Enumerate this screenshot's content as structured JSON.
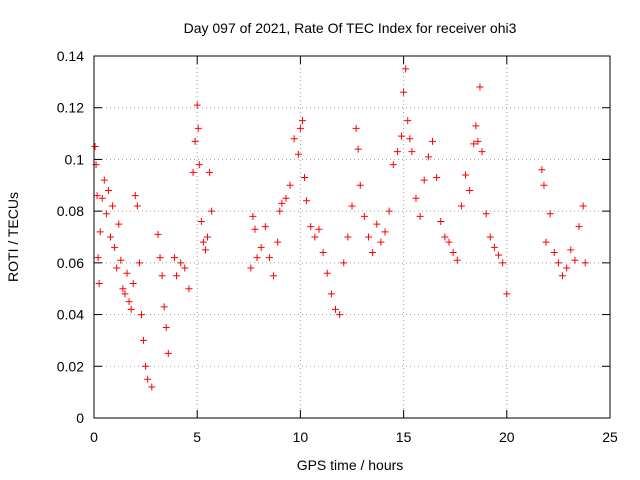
{
  "chart_data": {
    "type": "scatter",
    "title": "Day 097 of 2021, Rate Of TEC Index for receiver ohi3",
    "xlabel": "GPS time / hours",
    "ylabel": "ROTI / TECUs",
    "xlim": [
      0,
      25
    ],
    "ylim": [
      0,
      0.14
    ],
    "xticks": [
      0,
      5,
      10,
      15,
      20,
      25
    ],
    "yticks": [
      0,
      0.02,
      0.04,
      0.06,
      0.08,
      0.1,
      0.12,
      0.14
    ],
    "xtick_labels": [
      "0",
      "5",
      "10",
      "15",
      "20",
      "25"
    ],
    "ytick_labels": [
      "0",
      "0.02",
      "0.04",
      "0.06",
      "0.08",
      "0.1",
      "0.12",
      "0.14"
    ],
    "grid": true,
    "marker": "+",
    "series": [
      {
        "color": "#ff0000",
        "points": [
          [
            0.05,
            0.105
          ],
          [
            0.1,
            0.098
          ],
          [
            0.15,
            0.086
          ],
          [
            0.2,
            0.062
          ],
          [
            0.25,
            0.052
          ],
          [
            0.3,
            0.072
          ],
          [
            0.4,
            0.085
          ],
          [
            0.5,
            0.092
          ],
          [
            0.6,
            0.079
          ],
          [
            0.7,
            0.088
          ],
          [
            0.8,
            0.07
          ],
          [
            0.9,
            0.082
          ],
          [
            1.0,
            0.066
          ],
          [
            1.1,
            0.058
          ],
          [
            1.2,
            0.075
          ],
          [
            1.3,
            0.061
          ],
          [
            1.4,
            0.05
          ],
          [
            1.5,
            0.048
          ],
          [
            1.6,
            0.056
          ],
          [
            1.7,
            0.045
          ],
          [
            1.8,
            0.042
          ],
          [
            1.9,
            0.052
          ],
          [
            2.0,
            0.086
          ],
          [
            2.1,
            0.082
          ],
          [
            2.2,
            0.06
          ],
          [
            2.3,
            0.04
          ],
          [
            2.4,
            0.03
          ],
          [
            2.5,
            0.02
          ],
          [
            2.6,
            0.015
          ],
          [
            2.8,
            0.012
          ],
          [
            3.1,
            0.071
          ],
          [
            3.2,
            0.062
          ],
          [
            3.3,
            0.055
          ],
          [
            3.4,
            0.043
          ],
          [
            3.5,
            0.035
          ],
          [
            3.6,
            0.025
          ],
          [
            3.9,
            0.062
          ],
          [
            4.0,
            0.055
          ],
          [
            4.2,
            0.06
          ],
          [
            4.4,
            0.058
          ],
          [
            4.6,
            0.05
          ],
          [
            4.8,
            0.095
          ],
          [
            4.9,
            0.107
          ],
          [
            5.0,
            0.121
          ],
          [
            5.05,
            0.112
          ],
          [
            5.1,
            0.098
          ],
          [
            5.2,
            0.076
          ],
          [
            5.3,
            0.068
          ],
          [
            5.4,
            0.065
          ],
          [
            5.5,
            0.07
          ],
          [
            5.6,
            0.095
          ],
          [
            5.7,
            0.08
          ],
          [
            7.6,
            0.058
          ],
          [
            7.7,
            0.078
          ],
          [
            7.8,
            0.073
          ],
          [
            7.9,
            0.062
          ],
          [
            8.1,
            0.066
          ],
          [
            8.3,
            0.074
          ],
          [
            8.5,
            0.062
          ],
          [
            8.7,
            0.055
          ],
          [
            8.9,
            0.068
          ],
          [
            9.0,
            0.08
          ],
          [
            9.1,
            0.083
          ],
          [
            9.3,
            0.085
          ],
          [
            9.5,
            0.09
          ],
          [
            9.7,
            0.108
          ],
          [
            9.9,
            0.102
          ],
          [
            10.0,
            0.112
          ],
          [
            10.1,
            0.115
          ],
          [
            10.2,
            0.093
          ],
          [
            10.3,
            0.084
          ],
          [
            10.5,
            0.074
          ],
          [
            10.7,
            0.07
          ],
          [
            10.9,
            0.073
          ],
          [
            11.1,
            0.064
          ],
          [
            11.3,
            0.056
          ],
          [
            11.5,
            0.048
          ],
          [
            11.7,
            0.042
          ],
          [
            11.9,
            0.04
          ],
          [
            12.1,
            0.06
          ],
          [
            12.3,
            0.07
          ],
          [
            12.5,
            0.082
          ],
          [
            12.7,
            0.112
          ],
          [
            12.8,
            0.104
          ],
          [
            12.9,
            0.09
          ],
          [
            13.1,
            0.078
          ],
          [
            13.3,
            0.07
          ],
          [
            13.5,
            0.064
          ],
          [
            13.7,
            0.075
          ],
          [
            13.9,
            0.068
          ],
          [
            14.1,
            0.072
          ],
          [
            14.3,
            0.08
          ],
          [
            14.5,
            0.098
          ],
          [
            14.7,
            0.103
          ],
          [
            14.9,
            0.109
          ],
          [
            15.0,
            0.126
          ],
          [
            15.1,
            0.135
          ],
          [
            15.2,
            0.115
          ],
          [
            15.3,
            0.108
          ],
          [
            15.4,
            0.103
          ],
          [
            15.6,
            0.085
          ],
          [
            15.8,
            0.078
          ],
          [
            16.0,
            0.092
          ],
          [
            16.2,
            0.101
          ],
          [
            16.4,
            0.107
          ],
          [
            16.6,
            0.093
          ],
          [
            16.8,
            0.076
          ],
          [
            17.0,
            0.07
          ],
          [
            17.2,
            0.068
          ],
          [
            17.4,
            0.064
          ],
          [
            17.6,
            0.061
          ],
          [
            17.8,
            0.082
          ],
          [
            18.0,
            0.094
          ],
          [
            18.2,
            0.088
          ],
          [
            18.4,
            0.106
          ],
          [
            18.5,
            0.113
          ],
          [
            18.6,
            0.107
          ],
          [
            18.7,
            0.128
          ],
          [
            18.8,
            0.103
          ],
          [
            19.0,
            0.079
          ],
          [
            19.2,
            0.07
          ],
          [
            19.4,
            0.066
          ],
          [
            19.6,
            0.063
          ],
          [
            19.8,
            0.06
          ],
          [
            20.0,
            0.048
          ],
          [
            21.7,
            0.096
          ],
          [
            21.8,
            0.09
          ],
          [
            21.9,
            0.068
          ],
          [
            22.1,
            0.079
          ],
          [
            22.3,
            0.064
          ],
          [
            22.5,
            0.06
          ],
          [
            22.7,
            0.055
          ],
          [
            22.9,
            0.058
          ],
          [
            23.1,
            0.065
          ],
          [
            23.3,
            0.061
          ],
          [
            23.5,
            0.074
          ],
          [
            23.7,
            0.082
          ],
          [
            23.8,
            0.06
          ]
        ]
      }
    ]
  }
}
